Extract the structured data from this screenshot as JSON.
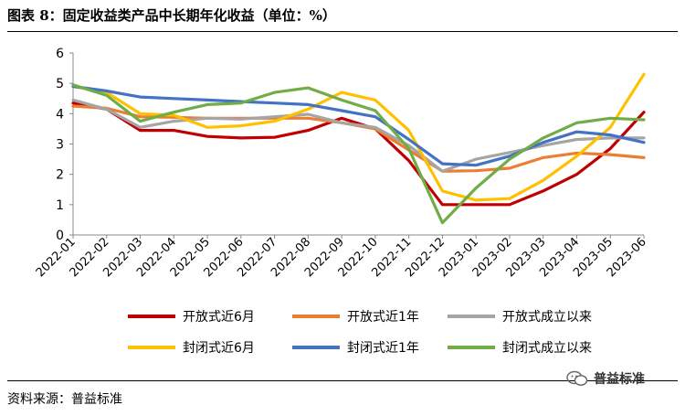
{
  "figure": {
    "title": "图表 8：固定收益类产品中长期年化收益（单位：%）",
    "source": "资料来源：普益标准",
    "watermark": "普益标准",
    "watermark_icon": "wechat-icon"
  },
  "chart_data": {
    "type": "line",
    "categories": [
      "2022-01",
      "2022-02",
      "2022-03",
      "2022-04",
      "2022-05",
      "2022-06",
      "2022-07",
      "2022-08",
      "2022-09",
      "2022-10",
      "2022-11",
      "2022-12",
      "2023-01",
      "2023-02",
      "2023-03",
      "2023-04",
      "2023-05",
      "2023-06"
    ],
    "ylim": [
      0,
      6
    ],
    "yticks": [
      0,
      1,
      2,
      3,
      4,
      5,
      6
    ],
    "grid": false,
    "legend_position": "bottom",
    "series": [
      {
        "name": "开放式近6月",
        "color": "#C00000",
        "values": [
          4.35,
          4.15,
          3.45,
          3.45,
          3.25,
          3.2,
          3.22,
          3.45,
          3.85,
          3.5,
          2.45,
          1.0,
          1.0,
          1.0,
          1.45,
          2.0,
          2.85,
          4.05
        ]
      },
      {
        "name": "开放式近1年",
        "color": "#ED7D31",
        "values": [
          4.25,
          4.18,
          3.9,
          3.88,
          3.85,
          3.85,
          3.85,
          3.85,
          3.7,
          3.5,
          2.8,
          2.1,
          2.12,
          2.2,
          2.55,
          2.7,
          2.65,
          2.55
        ]
      },
      {
        "name": "开放式成立以来",
        "color": "#A5A5A5",
        "values": [
          4.45,
          4.15,
          3.55,
          3.75,
          3.85,
          3.82,
          3.9,
          3.98,
          3.7,
          3.55,
          2.95,
          2.1,
          2.5,
          2.72,
          2.95,
          3.15,
          3.2,
          3.2
        ]
      },
      {
        "name": "封闭式近6月",
        "color": "#FFC000",
        "values": [
          4.9,
          4.7,
          4.0,
          3.95,
          3.55,
          3.6,
          3.75,
          4.15,
          4.7,
          4.45,
          3.45,
          1.45,
          1.15,
          1.2,
          1.8,
          2.6,
          3.55,
          5.3
        ]
      },
      {
        "name": "封闭式近1年",
        "color": "#4472C4",
        "values": [
          4.9,
          4.75,
          4.55,
          4.5,
          4.45,
          4.4,
          4.35,
          4.3,
          4.1,
          3.9,
          3.15,
          2.35,
          2.3,
          2.6,
          3.05,
          3.4,
          3.3,
          3.05
        ]
      },
      {
        "name": "封闭式成立以来",
        "color": "#70AD47",
        "values": [
          4.95,
          4.6,
          3.75,
          4.05,
          4.3,
          4.35,
          4.7,
          4.85,
          4.45,
          4.1,
          2.85,
          0.4,
          1.55,
          2.5,
          3.2,
          3.7,
          3.85,
          3.8
        ]
      }
    ]
  }
}
